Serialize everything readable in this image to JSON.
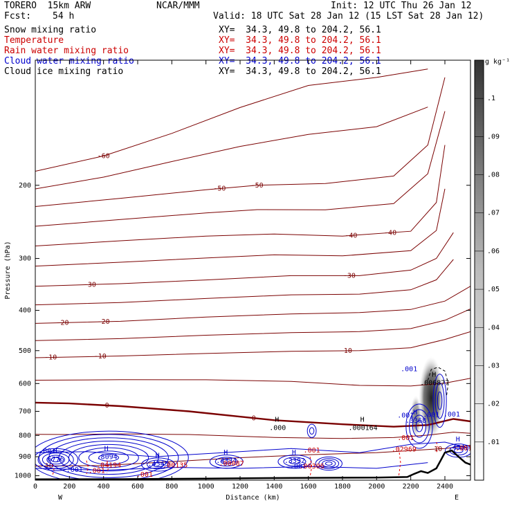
{
  "header": {
    "model": "TORERO  15km ARW",
    "org": "NCAR/MMM",
    "init": "Init: 12 UTC Thu 26 Jan 12",
    "fcst_label": "Fcst:",
    "fcst_value": "54 h",
    "valid": "Valid: 18 UTC Sat 28 Jan 12 (15 LST Sat 28 Jan 12)"
  },
  "fields": [
    {
      "name": "Snow mixing ratio",
      "xy": "",
      "color": "#000000"
    },
    {
      "name": "Temperature",
      "xy": "XY=  34.3, 49.8 to 204.2, 56.1",
      "color": "#cc0000"
    },
    {
      "name": "Rain water mixing ratio",
      "xy": "XY=  34.3, 49.8 to 204.2, 56.1",
      "color": "#cc0000"
    },
    {
      "name": "Cloud water mixing ratio",
      "xy": "XY=  34.3, 49.8 to 204.2, 56.1",
      "color": "#0000cc"
    },
    {
      "name": "Cloud ice mixing ratio",
      "xy": "XY=  34.3, 49.8 to 204.2, 56.1",
      "color": "#000000"
    }
  ],
  "xy_first": "XY=  34.3, 49.8 to 204.2, 56.1",
  "chart_data": {
    "type": "contour",
    "xlabel": "Distance (km)",
    "ylabel": "Pressure (hPa)",
    "x_ticks": [
      0,
      200,
      400,
      600,
      800,
      1000,
      1200,
      1400,
      1600,
      1800,
      2000,
      2200,
      2400
    ],
    "y_ticks": [
      200,
      300,
      400,
      500,
      600,
      700,
      800,
      900,
      1000
    ],
    "xlim": [
      0,
      2550
    ],
    "ylim": [
      1025,
      100
    ],
    "endpoints": {
      "left": "W",
      "right": "E"
    },
    "colorbar": {
      "units": "g kg⁻¹",
      "ticks": [
        ".01",
        ".02",
        ".03",
        ".04",
        ".05",
        ".06",
        ".07",
        ".08",
        ".09",
        ".1"
      ]
    },
    "temperature_labels": [
      "-60",
      "-50",
      "-50",
      "-40",
      "-40",
      "-30",
      "-30",
      "-20",
      "-20",
      "-10",
      "-10",
      "-10",
      "0",
      "0",
      "10",
      "10"
    ],
    "temperature_contours": [
      {
        "label": "-60",
        "pts": [
          [
            0,
            185
          ],
          [
            400,
            170
          ],
          [
            800,
            150
          ],
          [
            1200,
            130
          ],
          [
            1600,
            115
          ],
          [
            2000,
            110
          ],
          [
            2300,
            105
          ]
        ]
      },
      {
        "label": "-50",
        "pts": [
          [
            0,
            225
          ],
          [
            500,
            215
          ],
          [
            1000,
            205
          ],
          [
            1300,
            200
          ],
          [
            1700,
            198
          ],
          [
            2100,
            190
          ],
          [
            2300,
            160
          ],
          [
            2400,
            110
          ]
        ]
      },
      {
        "label": "-40",
        "pts": [
          [
            0,
            280
          ],
          [
            500,
            272
          ],
          [
            1000,
            265
          ],
          [
            1400,
            262
          ],
          [
            1800,
            265
          ],
          [
            2200,
            258
          ],
          [
            2350,
            220
          ],
          [
            2400,
            160
          ]
        ]
      },
      {
        "label": "-30",
        "pts": [
          [
            0,
            350
          ],
          [
            500,
            345
          ],
          [
            1000,
            338
          ],
          [
            1500,
            330
          ],
          [
            1900,
            330
          ],
          [
            2200,
            320
          ],
          [
            2350,
            300
          ],
          [
            2450,
            260
          ]
        ]
      },
      {
        "label": "-20",
        "pts": [
          [
            0,
            430
          ],
          [
            500,
            425
          ],
          [
            1000,
            415
          ],
          [
            1500,
            408
          ],
          [
            1900,
            405
          ],
          [
            2200,
            398
          ],
          [
            2400,
            380
          ],
          [
            2550,
            350
          ]
        ]
      },
      {
        "label": "-10",
        "pts": [
          [
            0,
            520
          ],
          [
            500,
            515
          ],
          [
            1000,
            508
          ],
          [
            1500,
            502
          ],
          [
            1900,
            500
          ],
          [
            2200,
            492
          ],
          [
            2400,
            470
          ],
          [
            2550,
            450
          ]
        ]
      },
      {
        "label": "0",
        "pts": [
          [
            0,
            667
          ],
          [
            200,
            670
          ],
          [
            500,
            680
          ],
          [
            900,
            700
          ],
          [
            1400,
            735
          ],
          [
            1800,
            752
          ],
          [
            2100,
            762
          ],
          [
            2300,
            755
          ],
          [
            2450,
            730
          ],
          [
            2550,
            740
          ]
        ]
      },
      {
        "label": "10",
        "pts": [
          [
            0,
            948
          ],
          [
            400,
            945
          ],
          [
            800,
            925
          ],
          [
            1200,
            905
          ],
          [
            1600,
            890
          ],
          [
            2000,
            880
          ],
          [
            2400,
            860
          ],
          [
            2550,
            845
          ]
        ]
      }
    ],
    "cloud_water_labels": [
      ".001",
      ".001",
      ".001",
      ".001",
      ".001",
      ".001",
      ".001"
    ],
    "cloud_water_maxima": [
      {
        "h": "H",
        "value": "6776",
        "x": 120,
        "p": 918
      },
      {
        "h": "H",
        "value": ".8094",
        "x": 420,
        "p": 905
      },
      {
        "h": "H",
        "value": ".4545",
        "x": 720,
        "p": 940
      },
      {
        "h": "H",
        "value": ".4334",
        "x": 1120,
        "p": 925
      },
      {
        "h": "H",
        "value": ".3392",
        "x": 1520,
        "p": 925
      },
      {
        "h": "H",
        "value": ".000",
        "x": 1420,
        "p": 770
      },
      {
        "h": "H",
        "value": ".000164",
        "x": 1920,
        "p": 770
      },
      {
        "h": "H",
        "value": ".3368",
        "x": 2230,
        "p": 740
      },
      {
        "h": "H",
        "value": ".4541",
        "x": 2480,
        "p": 860
      },
      {
        "h": "H",
        "value": ".006877",
        "x": 2340,
        "p": 600
      }
    ],
    "rain_water_maxima": [
      {
        "value": ".04194",
        "x": 430,
        "p": 955
      },
      {
        "value": ".00135",
        "x": 820,
        "p": 955
      },
      {
        "value": ".00087",
        "x": 1150,
        "p": 945
      },
      {
        "value": ".00306",
        "x": 1620,
        "p": 960
      },
      {
        "value": ".02969",
        "x": 2160,
        "p": 875
      }
    ],
    "rain_labels": [
      ".001",
      ".001",
      ".001",
      ".001",
      ".001"
    ],
    "terrain": [
      [
        0,
        1020
      ],
      [
        500,
        1019
      ],
      [
        1000,
        1016
      ],
      [
        1500,
        1012
      ],
      [
        2000,
        1010
      ],
      [
        2180,
        1007
      ],
      [
        2220,
        990
      ],
      [
        2260,
        975
      ],
      [
        2300,
        985
      ],
      [
        2350,
        960
      ],
      [
        2400,
        880
      ],
      [
        2440,
        870
      ],
      [
        2480,
        900
      ],
      [
        2520,
        930
      ],
      [
        2550,
        940
      ]
    ]
  }
}
